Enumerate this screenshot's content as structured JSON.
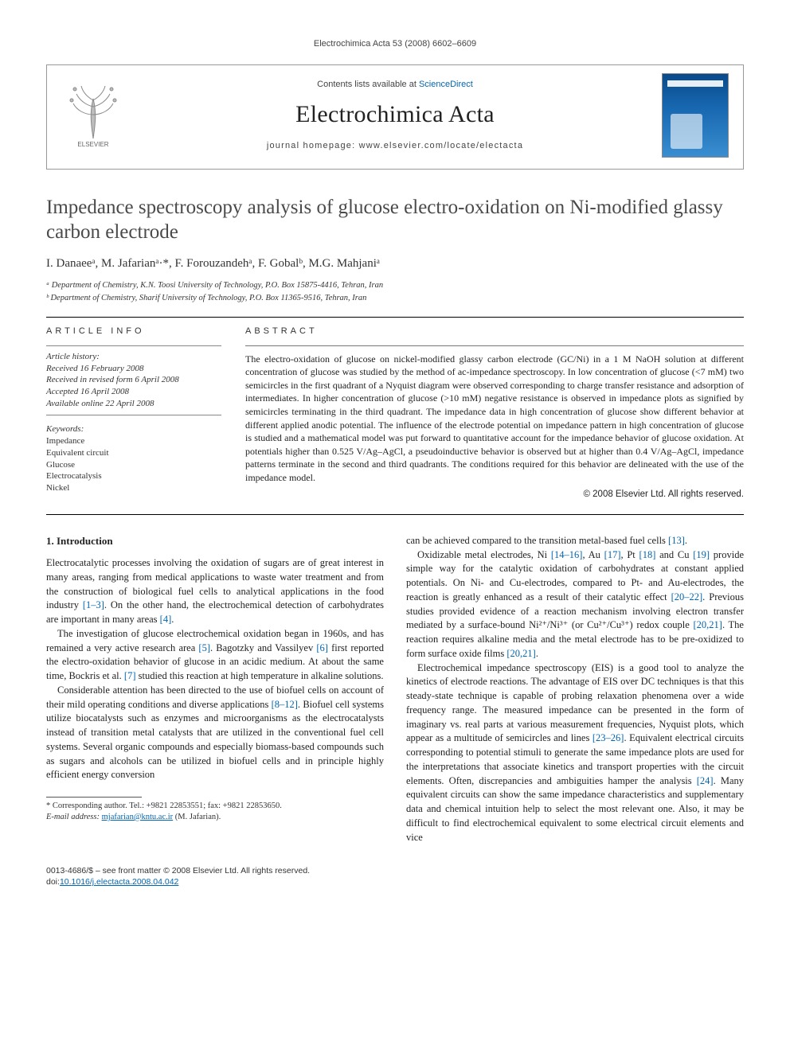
{
  "running_head": "Electrochimica Acta 53 (2008) 6602–6609",
  "masthead": {
    "contents_prefix": "Contents lists available at ",
    "contents_link": "ScienceDirect",
    "journal": "Electrochimica Acta",
    "homepage_prefix": "journal homepage: ",
    "homepage": "www.elsevier.com/locate/electacta",
    "publisher_logo_label": "ELSEVIER"
  },
  "title": "Impedance spectroscopy analysis of glucose electro-oxidation on Ni-modified glassy carbon electrode",
  "authors_html": "I. Danaeeᵃ, M. Jafarianᵃ·*, F. Forouzandehᵃ, F. Gobalᵇ, M.G. Mahjaniᵃ",
  "affiliations": {
    "a": "ᵃ Department of Chemistry, K.N. Toosi University of Technology, P.O. Box 15875-4416, Tehran, Iran",
    "b": "ᵇ Department of Chemistry, Sharif University of Technology, P.O. Box 11365-9516, Tehran, Iran"
  },
  "info": {
    "head": "ARTICLE INFO",
    "history_label": "Article history:",
    "received": "Received 16 February 2008",
    "revised": "Received in revised form 6 April 2008",
    "accepted": "Accepted 16 April 2008",
    "online": "Available online 22 April 2008",
    "keywords_label": "Keywords:",
    "keywords": [
      "Impedance",
      "Equivalent circuit",
      "Glucose",
      "Electrocatalysis",
      "Nickel"
    ]
  },
  "abstract": {
    "head": "ABSTRACT",
    "text": "The electro-oxidation of glucose on nickel-modified glassy carbon electrode (GC/Ni) in a 1 M NaOH solution at different concentration of glucose was studied by the method of ac-impedance spectroscopy. In low concentration of glucose (<7 mM) two semicircles in the first quadrant of a Nyquist diagram were observed corresponding to charge transfer resistance and adsorption of intermediates. In higher concentration of glucose (>10 mM) negative resistance is observed in impedance plots as signified by semicircles terminating in the third quadrant. The impedance data in high concentration of glucose show different behavior at different applied anodic potential. The influence of the electrode potential on impedance pattern in high concentration of glucose is studied and a mathematical model was put forward to quantitative account for the impedance behavior of glucose oxidation. At potentials higher than 0.525 V/Ag–AgCl, a pseudoinductive behavior is observed but at higher than 0.4 V/Ag–AgCl, impedance patterns terminate in the second and third quadrants. The conditions required for this behavior are delineated with the use of the impedance model.",
    "copyright": "© 2008 Elsevier Ltd. All rights reserved."
  },
  "section1": {
    "head": "1.  Introduction",
    "p1": "Electrocatalytic processes involving the oxidation of sugars are of great interest in many areas, ranging from medical applications to waste water treatment and from the construction of biological fuel cells to analytical applications in the food industry [1–3]. On the other hand, the electrochemical detection of carbohydrates are important in many areas [4].",
    "p2": "The investigation of glucose electrochemical oxidation began in 1960s, and has remained a very active research area [5]. Bagotzky and Vassilyev [6] first reported the electro-oxidation behavior of glucose in an acidic medium. At about the same time, Bockris et al. [7] studied this reaction at high temperature in alkaline solutions.",
    "p3": "Considerable attention has been directed to the use of biofuel cells on account of their mild operating conditions and diverse applications [8–12]. Biofuel cell systems utilize biocatalysts such as enzymes and microorganisms as the electrocatalysts instead of transition metal catalysts that are utilized in the conventional fuel cell systems. Several organic compounds and especially biomass-based compounds such as sugars and alcohols can be utilized in biofuel cells and in principle highly efficient energy conversion",
    "p4": "can be achieved compared to the transition metal-based fuel cells [13].",
    "p5": "Oxidizable metal electrodes, Ni [14–16], Au [17], Pt [18] and Cu [19] provide simple way for the catalytic oxidation of carbohydrates at constant applied potentials. On Ni- and Cu-electrodes, compared to Pt- and Au-electrodes, the reaction is greatly enhanced as a result of their catalytic effect [20–22]. Previous studies provided evidence of a reaction mechanism involving electron transfer mediated by a surface-bound Ni²⁺/Ni³⁺ (or Cu²⁺/Cu³⁺) redox couple [20,21]. The reaction requires alkaline media and the metal electrode has to be pre-oxidized to form surface oxide films [20,21].",
    "p6": "Electrochemical impedance spectroscopy (EIS) is a good tool to analyze the kinetics of electrode reactions. The advantage of EIS over DC techniques is that this steady-state technique is capable of probing relaxation phenomena over a wide frequency range. The measured impedance can be presented in the form of imaginary vs. real parts at various measurement frequencies, Nyquist plots, which appear as a multitude of semicircles and lines [23–26]. Equivalent electrical circuits corresponding to potential stimuli to generate the same impedance plots are used for the interpretations that associate kinetics and transport properties with the circuit elements. Often, discrepancies and ambiguities hamper the analysis [24]. Many equivalent circuits can show the same impedance characteristics and supplementary data and chemical intuition help to select the most relevant one. Also, it may be difficult to find electrochemical equivalent to some electrical circuit elements and vice"
  },
  "footnote": {
    "corr": "* Corresponding author. Tel.: +9821 22853551; fax: +9821 22853650.",
    "email_label": "E-mail address: ",
    "email": "mjafarian@kntu.ac.ir",
    "email_tail": " (M. Jafarian)."
  },
  "footer": {
    "left1": "0013-4686/$ – see front matter © 2008 Elsevier Ltd. All rights reserved.",
    "doi_label": "doi:",
    "doi": "10.1016/j.electacta.2008.04.042"
  },
  "colors": {
    "link": "#0066b3",
    "text": "#222222",
    "rule": "#000000",
    "cover_grad_top": "#0a4a8a",
    "cover_grad_bot": "#3a8ed0"
  }
}
